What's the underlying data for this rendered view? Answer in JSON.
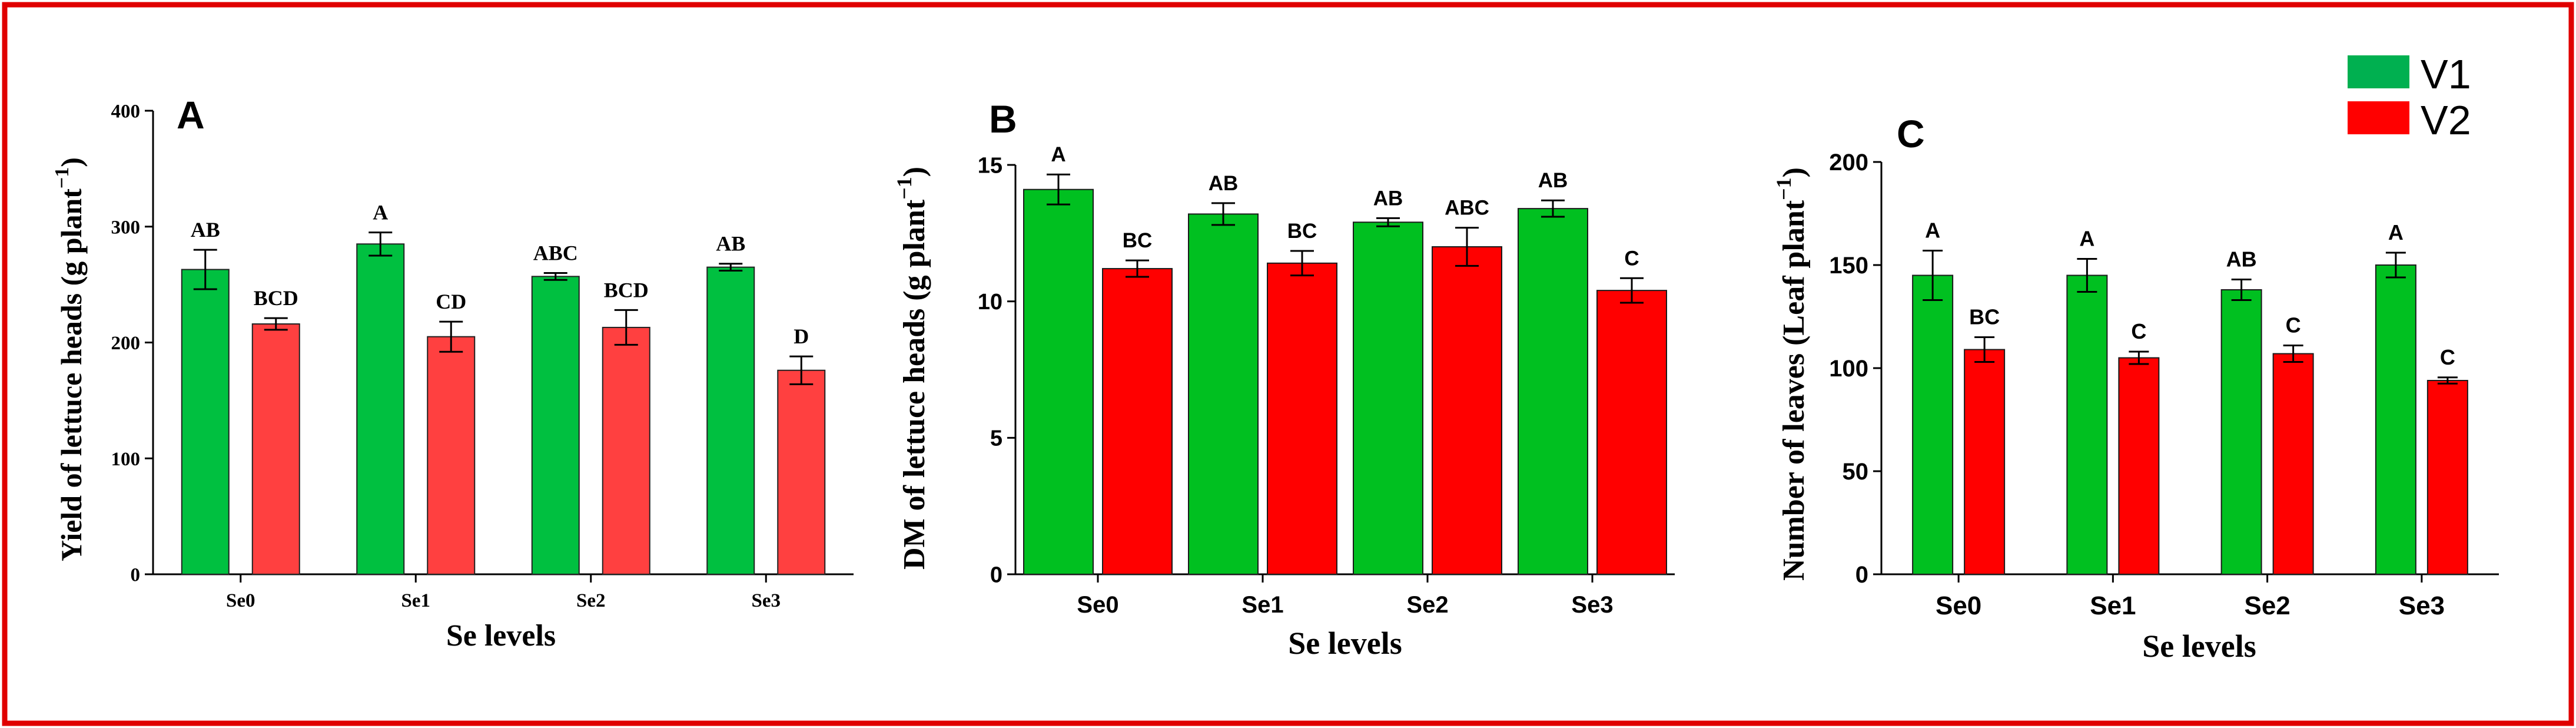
{
  "legend": [
    {
      "name": "V1",
      "color": "#00b050"
    },
    {
      "name": "V2",
      "color": "#ff0000"
    }
  ],
  "frame_color": "#e00000",
  "chart_data": [
    {
      "type": "bar",
      "panel": "A",
      "categories": [
        "Se0",
        "Se1",
        "Se2",
        "Se3"
      ],
      "xlabel": "Se levels",
      "ylabel": "Yield of lettuce heads (g plant",
      "ylabel_sup": "−1",
      "ylabel_close": ")",
      "ylim": [
        0,
        400
      ],
      "yticks": [
        0,
        100,
        200,
        300,
        400
      ],
      "series": [
        {
          "name": "V1",
          "color": "#00c040",
          "values": [
            263,
            285,
            257,
            265
          ],
          "errors": [
            17,
            10,
            3,
            3
          ],
          "letters": [
            "AB",
            "A",
            "ABC",
            "AB"
          ]
        },
        {
          "name": "V2",
          "color": "#ff4040",
          "values": [
            216,
            205,
            213,
            176
          ],
          "errors": [
            5,
            13,
            15,
            12
          ],
          "letters": [
            "BCD",
            "CD",
            "BCD",
            "D"
          ]
        }
      ]
    },
    {
      "type": "bar",
      "panel": "B",
      "categories": [
        "Se0",
        "Se1",
        "Se2",
        "Se3"
      ],
      "xlabel": "Se levels",
      "ylabel": "DM of lettuce heads (g plant",
      "ylabel_sup": "−1",
      "ylabel_close": ")",
      "ylim": [
        0,
        15
      ],
      "yticks": [
        0,
        5,
        10,
        15
      ],
      "series": [
        {
          "name": "V1",
          "color": "#00c020",
          "values": [
            14.1,
            13.2,
            12.9,
            13.4
          ],
          "errors": [
            0.55,
            0.4,
            0.15,
            0.3
          ],
          "letters": [
            "A",
            "AB",
            "AB",
            "AB"
          ]
        },
        {
          "name": "V2",
          "color": "#ff0000",
          "values": [
            11.2,
            11.4,
            12.0,
            10.4
          ],
          "errors": [
            0.3,
            0.45,
            0.7,
            0.45
          ],
          "letters": [
            "BC",
            "BC",
            "ABC",
            "C"
          ]
        }
      ]
    },
    {
      "type": "bar",
      "panel": "C",
      "categories": [
        "Se0",
        "Se1",
        "Se2",
        "Se3"
      ],
      "xlabel": "Se levels",
      "ylabel": "Number of leaves (Leaf plant",
      "ylabel_sup": "−1",
      "ylabel_close": ")",
      "ylim": [
        0,
        200
      ],
      "yticks": [
        0,
        50,
        100,
        150,
        200
      ],
      "series": [
        {
          "name": "V1",
          "color": "#00c020",
          "values": [
            145,
            145,
            138,
            150
          ],
          "errors": [
            12,
            8,
            5,
            6
          ],
          "letters": [
            "A",
            "A",
            "AB",
            "A"
          ]
        },
        {
          "name": "V2",
          "color": "#ff0000",
          "values": [
            109,
            105,
            107,
            94
          ],
          "errors": [
            6,
            3,
            4,
            1.5
          ],
          "letters": [
            "BC",
            "C",
            "C",
            "C"
          ]
        }
      ]
    }
  ]
}
